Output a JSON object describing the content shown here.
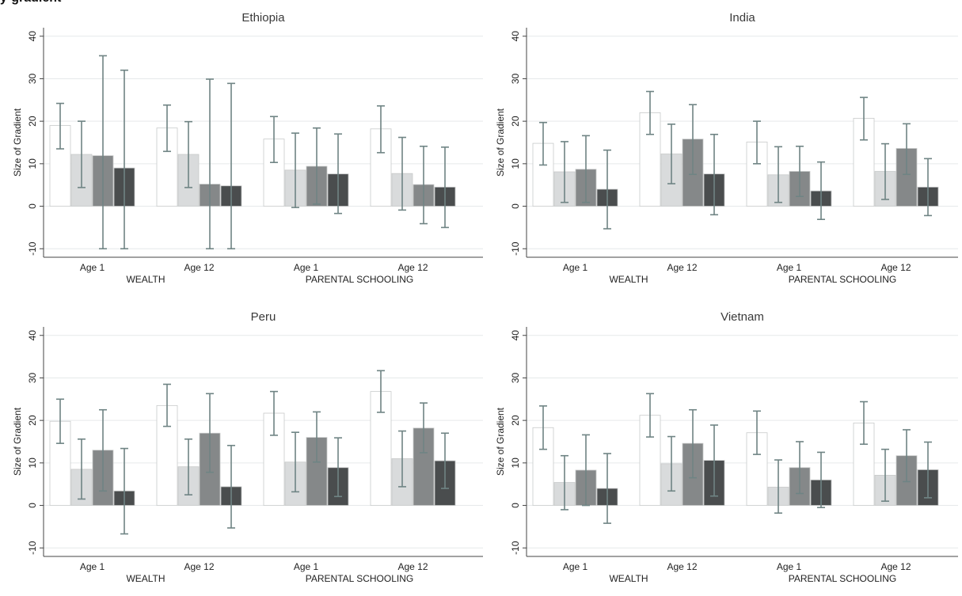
{
  "figure": {
    "label_fragment": "y-gradient"
  },
  "chart_data": [
    {
      "type": "bar",
      "title": "Ethiopia",
      "ylabel": "Size of Gradient",
      "ylim": [
        -12,
        42
      ],
      "yticks": [
        -10,
        0,
        10,
        20,
        30,
        40
      ],
      "grid": true,
      "groups": [
        {
          "age": "Age 1",
          "measure": "WEALTH",
          "bars": [
            {
              "value": 19.0,
              "ci": [
                13.5,
                24.2
              ]
            },
            {
              "value": 12.2,
              "ci": [
                4.4,
                20.0
              ]
            },
            {
              "value": 11.9,
              "ci": [
                -10.0,
                35.4
              ]
            },
            {
              "value": 9.0,
              "ci": [
                -10.0,
                32.0
              ]
            }
          ]
        },
        {
          "age": "Age 12",
          "measure": "WEALTH",
          "bars": [
            {
              "value": 18.4,
              "ci": [
                12.9,
                23.8
              ]
            },
            {
              "value": 12.2,
              "ci": [
                4.4,
                19.9
              ]
            },
            {
              "value": 5.2,
              "ci": [
                -10.0,
                29.9
              ]
            },
            {
              "value": 4.8,
              "ci": [
                -10.0,
                28.9
              ]
            }
          ]
        },
        {
          "age": "Age 1",
          "measure": "PARENTAL SCHOOLING",
          "bars": [
            {
              "value": 15.8,
              "ci": [
                10.3,
                21.1
              ]
            },
            {
              "value": 8.5,
              "ci": [
                -0.3,
                17.2
              ]
            },
            {
              "value": 9.4,
              "ci": [
                0.5,
                18.4
              ]
            },
            {
              "value": 7.6,
              "ci": [
                -1.7,
                17.0
              ]
            }
          ]
        },
        {
          "age": "Age 12",
          "measure": "PARENTAL SCHOOLING",
          "bars": [
            {
              "value": 18.2,
              "ci": [
                12.6,
                23.6
              ]
            },
            {
              "value": 7.7,
              "ci": [
                -0.9,
                16.2
              ]
            },
            {
              "value": 5.1,
              "ci": [
                -4.1,
                14.1
              ]
            },
            {
              "value": 4.5,
              "ci": [
                -5.0,
                13.9
              ]
            }
          ]
        }
      ]
    },
    {
      "type": "bar",
      "title": "India",
      "ylabel": "Size of Gradient",
      "ylim": [
        -12,
        42
      ],
      "yticks": [
        -10,
        0,
        10,
        20,
        30,
        40
      ],
      "grid": true,
      "groups": [
        {
          "age": "Age 1",
          "measure": "WEALTH",
          "bars": [
            {
              "value": 14.8,
              "ci": [
                9.7,
                19.7
              ]
            },
            {
              "value": 8.1,
              "ci": [
                0.9,
                15.2
              ]
            },
            {
              "value": 8.7,
              "ci": [
                0.9,
                16.6
              ]
            },
            {
              "value": 4.0,
              "ci": [
                -5.3,
                13.2
              ]
            }
          ]
        },
        {
          "age": "Age 12",
          "measure": "WEALTH",
          "bars": [
            {
              "value": 22.0,
              "ci": [
                16.9,
                27.0
              ]
            },
            {
              "value": 12.3,
              "ci": [
                5.3,
                19.3
              ]
            },
            {
              "value": 15.8,
              "ci": [
                7.5,
                23.9
              ]
            },
            {
              "value": 7.6,
              "ci": [
                -2.0,
                16.9
              ]
            }
          ]
        },
        {
          "age": "Age 1",
          "measure": "PARENTAL SCHOOLING",
          "bars": [
            {
              "value": 15.1,
              "ci": [
                10.0,
                20.0
              ]
            },
            {
              "value": 7.4,
              "ci": [
                0.9,
                14.0
              ]
            },
            {
              "value": 8.2,
              "ci": [
                2.3,
                14.1
              ]
            },
            {
              "value": 3.6,
              "ci": [
                -3.1,
                10.4
              ]
            }
          ]
        },
        {
          "age": "Age 12",
          "measure": "PARENTAL SCHOOLING",
          "bars": [
            {
              "value": 20.7,
              "ci": [
                15.6,
                25.6
              ]
            },
            {
              "value": 8.2,
              "ci": [
                1.6,
                14.7
              ]
            },
            {
              "value": 13.6,
              "ci": [
                7.5,
                19.4
              ]
            },
            {
              "value": 4.5,
              "ci": [
                -2.2,
                11.2
              ]
            }
          ]
        }
      ]
    },
    {
      "type": "bar",
      "title": "Peru",
      "ylabel": "Size of Gradient",
      "ylim": [
        -12,
        42
      ],
      "yticks": [
        -10,
        0,
        10,
        20,
        30,
        40
      ],
      "grid": true,
      "groups": [
        {
          "age": "Age 1",
          "measure": "WEALTH",
          "bars": [
            {
              "value": 19.8,
              "ci": [
                14.6,
                25.0
              ]
            },
            {
              "value": 8.5,
              "ci": [
                1.5,
                15.6
              ]
            },
            {
              "value": 13.0,
              "ci": [
                3.4,
                22.5
              ]
            },
            {
              "value": 3.4,
              "ci": [
                -6.7,
                13.4
              ]
            }
          ]
        },
        {
          "age": "Age 12",
          "measure": "WEALTH",
          "bars": [
            {
              "value": 23.5,
              "ci": [
                18.6,
                28.5
              ]
            },
            {
              "value": 9.1,
              "ci": [
                2.5,
                15.6
              ]
            },
            {
              "value": 17.0,
              "ci": [
                7.8,
                26.3
              ]
            },
            {
              "value": 4.4,
              "ci": [
                -5.3,
                14.1
              ]
            }
          ]
        },
        {
          "age": "Age 1",
          "measure": "PARENTAL SCHOOLING",
          "bars": [
            {
              "value": 21.7,
              "ci": [
                16.5,
                26.8
              ]
            },
            {
              "value": 10.2,
              "ci": [
                3.2,
                17.2
              ]
            },
            {
              "value": 16.0,
              "ci": [
                10.2,
                22.0
              ]
            },
            {
              "value": 8.9,
              "ci": [
                2.1,
                15.9
              ]
            }
          ]
        },
        {
          "age": "Age 12",
          "measure": "PARENTAL SCHOOLING",
          "bars": [
            {
              "value": 26.8,
              "ci": [
                21.9,
                31.7
              ]
            },
            {
              "value": 11.0,
              "ci": [
                4.4,
                17.5
              ]
            },
            {
              "value": 18.2,
              "ci": [
                12.4,
                24.1
              ]
            },
            {
              "value": 10.5,
              "ci": [
                4.0,
                17.0
              ]
            }
          ]
        }
      ]
    },
    {
      "type": "bar",
      "title": "Vietnam",
      "ylabel": "Size of Gradient",
      "ylim": [
        -12,
        42
      ],
      "yticks": [
        -10,
        0,
        10,
        20,
        30,
        40
      ],
      "grid": true,
      "groups": [
        {
          "age": "Age 1",
          "measure": "WEALTH",
          "bars": [
            {
              "value": 18.3,
              "ci": [
                13.2,
                23.4
              ]
            },
            {
              "value": 5.4,
              "ci": [
                -1.0,
                11.7
              ]
            },
            {
              "value": 8.3,
              "ci": [
                0.0,
                16.6
              ]
            },
            {
              "value": 4.0,
              "ci": [
                -4.2,
                12.2
              ]
            }
          ]
        },
        {
          "age": "Age 12",
          "measure": "WEALTH",
          "bars": [
            {
              "value": 21.2,
              "ci": [
                16.1,
                26.3
              ]
            },
            {
              "value": 9.8,
              "ci": [
                3.4,
                16.2
              ]
            },
            {
              "value": 14.6,
              "ci": [
                6.5,
                22.5
              ]
            },
            {
              "value": 10.6,
              "ci": [
                2.2,
                18.9
              ]
            }
          ]
        },
        {
          "age": "Age 1",
          "measure": "PARENTAL SCHOOLING",
          "bars": [
            {
              "value": 17.1,
              "ci": [
                12.0,
                22.2
              ]
            },
            {
              "value": 4.3,
              "ci": [
                -1.8,
                10.7
              ]
            },
            {
              "value": 8.9,
              "ci": [
                2.8,
                15.0
              ]
            },
            {
              "value": 6.0,
              "ci": [
                -0.5,
                12.5
              ]
            }
          ]
        },
        {
          "age": "Age 12",
          "measure": "PARENTAL SCHOOLING",
          "bars": [
            {
              "value": 19.4,
              "ci": [
                14.4,
                24.4
              ]
            },
            {
              "value": 7.1,
              "ci": [
                1.0,
                13.2
              ]
            },
            {
              "value": 11.7,
              "ci": [
                5.6,
                17.8
              ]
            },
            {
              "value": 8.4,
              "ci": [
                1.8,
                14.9
              ]
            }
          ]
        }
      ]
    }
  ],
  "colors": {
    "bar_fills": [
      "#ffffff",
      "#d9dbdc",
      "#858889",
      "#4a4d4e"
    ],
    "bar_stroke": "#c8caca",
    "errorbar": "#6f8484",
    "grid": "#e6e9ea",
    "axis": "#444444"
  }
}
